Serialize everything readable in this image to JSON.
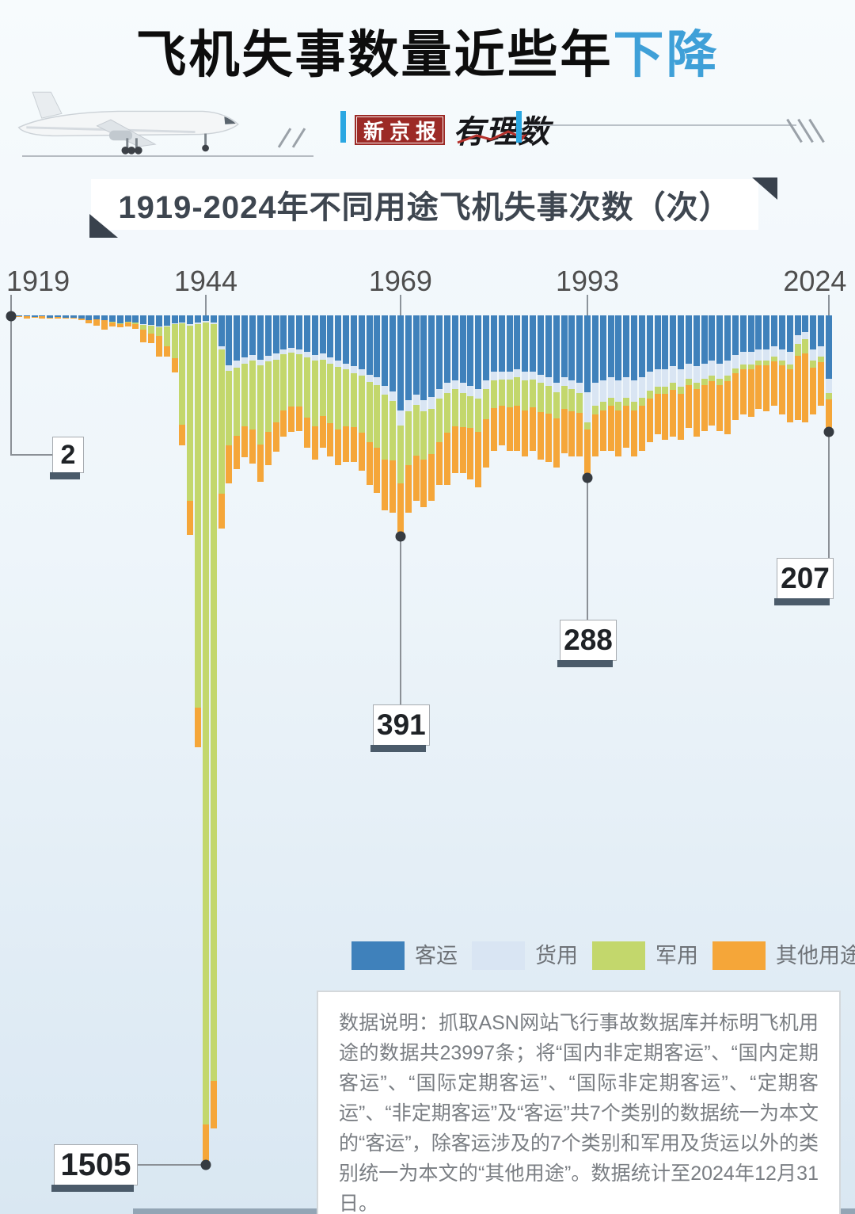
{
  "page": {
    "title_black": "飞机失事数量近些年",
    "title_blue": "下降"
  },
  "header": {
    "brand_left": "新京报",
    "brand_right": "有理数"
  },
  "banner": {
    "text": "1919-2024年不同用途飞机失事次数（次）"
  },
  "chart_data": {
    "type": "bar",
    "stacked": true,
    "orientation": "inverted-hanging",
    "title": "1919-2024年不同用途飞机失事次数（次）",
    "x_start_year": 1919,
    "x_end_year": 2024,
    "axis_ticks": [
      "1919",
      "1944",
      "1969",
      "1993",
      "2024"
    ],
    "legend_position": "bottom-right",
    "grid": false,
    "series": [
      {
        "name": "客运",
        "color": "#3f81bb",
        "values": [
          1,
          2,
          2,
          3,
          2,
          4,
          3,
          4,
          4,
          6,
          9,
          7,
          8,
          11,
          14,
          11,
          12,
          16,
          17,
          19,
          18,
          14,
          12,
          15,
          12,
          10,
          12,
          55,
          88,
          80,
          75,
          70,
          78,
          72,
          68,
          60,
          58,
          60,
          65,
          70,
          68,
          75,
          80,
          85,
          90,
          95,
          105,
          110,
          125,
          135,
          168,
          150,
          140,
          150,
          145,
          130,
          120,
          115,
          120,
          125,
          130,
          115,
          100,
          100,
          100,
          95,
          100,
          100,
          105,
          110,
          120,
          110,
          115,
          120,
          136,
          120,
          115,
          110,
          115,
          110,
          115,
          110,
          100,
          95,
          95,
          90,
          95,
          85,
          90,
          85,
          80,
          85,
          80,
          70,
          65,
          65,
          60,
          60,
          55,
          60,
          65,
          35,
          30,
          60,
          55,
          112
        ]
      },
      {
        "name": "货用",
        "color": "#d9e5f3",
        "values": [
          0,
          0,
          0,
          0,
          0,
          0,
          0,
          0,
          0,
          0,
          0,
          0,
          0,
          0,
          0,
          0,
          0,
          1,
          1,
          2,
          2,
          2,
          2,
          3,
          3,
          3,
          4,
          6,
          10,
          12,
          10,
          10,
          11,
          10,
          10,
          9,
          8,
          9,
          10,
          10,
          10,
          10,
          11,
          11,
          12,
          12,
          13,
          14,
          15,
          16,
          27,
          20,
          18,
          20,
          20,
          18,
          17,
          16,
          17,
          18,
          18,
          16,
          15,
          14,
          14,
          14,
          15,
          14,
          15,
          15,
          16,
          15,
          16,
          17,
          53,
          40,
          38,
          36,
          38,
          36,
          38,
          36,
          34,
          32,
          32,
          30,
          32,
          28,
          30,
          28,
          27,
          28,
          27,
          24,
          22,
          22,
          20,
          20,
          18,
          20,
          22,
          15,
          12,
          20,
          18,
          26
        ]
      },
      {
        "name": "军用",
        "color": "#c3d76c",
        "values": [
          0,
          0,
          0,
          0,
          0,
          0,
          0,
          0,
          0,
          0,
          0,
          0,
          1,
          1,
          1,
          2,
          3,
          8,
          14,
          16,
          35,
          60,
          180,
          310,
          680,
          1420,
          1340,
          255,
          132,
          122,
          112,
          122,
          140,
          125,
          112,
          100,
          96,
          93,
          106,
          116,
          101,
          106,
          111,
          101,
          96,
          101,
          106,
          111,
          116,
          106,
          102,
          96,
          91,
          86,
          81,
          76,
          71,
          66,
          61,
          56,
          59,
          53,
          49,
          46,
          49,
          51,
          53,
          49,
          51,
          49,
          46,
          41,
          39,
          36,
          13,
          15,
          15,
          14,
          15,
          14,
          15,
          14,
          13,
          12,
          12,
          12,
          12,
          11,
          11,
          11,
          10,
          10,
          10,
          9,
          9,
          9,
          8,
          8,
          8,
          8,
          8,
          22,
          25,
          12,
          10,
          11
        ]
      },
      {
        "name": "其他用途",
        "color": "#f5a639",
        "values": [
          1,
          1,
          4,
          1,
          4,
          2,
          2,
          1,
          2,
          2,
          5,
          11,
          16,
          8,
          6,
          7,
          9,
          23,
          17,
          36,
          18,
          25,
          36,
          61,
          70,
          72,
          84,
          62,
          68,
          58,
          55,
          60,
          66,
          58,
          52,
          46,
          44,
          43,
          54,
          59,
          56,
          59,
          63,
          63,
          62,
          67,
          76,
          80,
          89,
          93,
          94,
          84,
          79,
          84,
          82,
          76,
          92,
          83,
          82,
          91,
          98,
          86,
          76,
          70,
          77,
          80,
          82,
          77,
          84,
          86,
          88,
          79,
          80,
          77,
          86,
          75,
          72,
          80,
          82,
          75,
          82,
          80,
          78,
          71,
          81,
          83,
          81,
          76,
          84,
          81,
          78,
          82,
          93,
          82,
          79,
          84,
          77,
          82,
          79,
          87,
          95,
          113,
          123,
          83,
          77,
          58
        ]
      }
    ],
    "callouts": [
      {
        "year": 1919,
        "label": "2"
      },
      {
        "year": 1944,
        "label": "1505"
      },
      {
        "year": 1969,
        "label": "391"
      },
      {
        "year": 1993,
        "label": "288"
      },
      {
        "year": 2024,
        "label": "207"
      }
    ]
  },
  "footnote": {
    "text": "数据说明：抓取ASN网站飞行事故数据库并标明飞机用途的数据共23997条；将“国内非定期客运”、“国内定期客运”、“国际定期客运”、“国际非定期客运”、“定期客运”、“非定期客运”及“客运”共7个类别的数据统一为本文的“客运”，除客运涉及的7个类别和军用及货运以外的类别统一为本文的“其他用途”。数据统计至2024年12月31日。"
  }
}
